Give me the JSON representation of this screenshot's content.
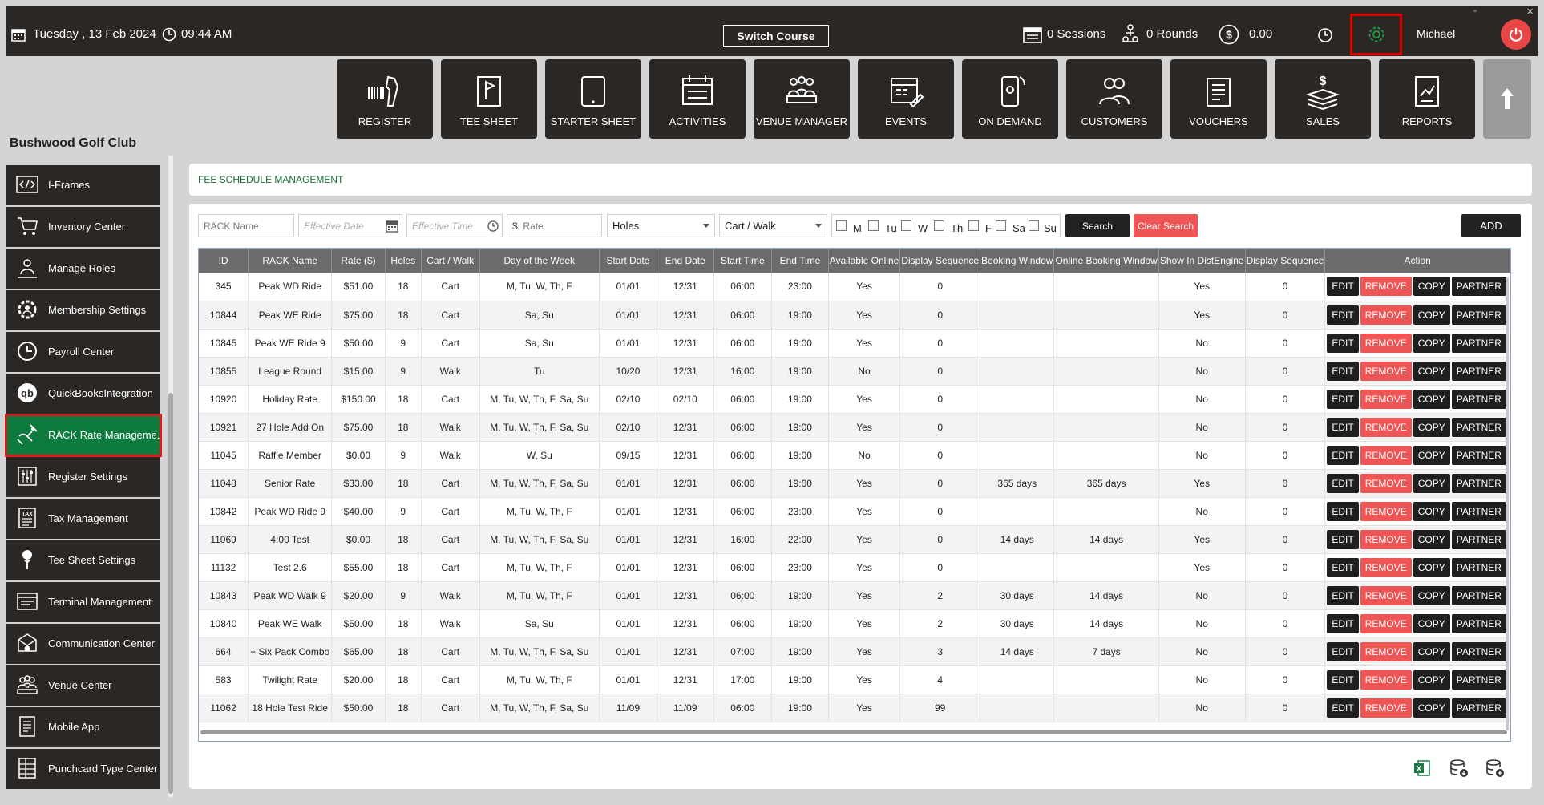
{
  "topbar": {
    "date": "Tuesday ,  13 Feb 2024",
    "time": "09:44 AM",
    "switch_course": "Switch Course",
    "sessions": "0 Sessions",
    "rounds": "0 Rounds",
    "balance": "0.00",
    "user": "Michael"
  },
  "nav": [
    "REGISTER",
    "TEE SHEET",
    "STARTER SHEET",
    "ACTIVITIES",
    "VENUE MANAGER",
    "EVENTS",
    "ON DEMAND",
    "CUSTOMERS",
    "VOUCHERS",
    "SALES",
    "REPORTS"
  ],
  "club_name": "Bushwood Golf Club",
  "sidebar": [
    "I-Frames",
    "Inventory Center",
    "Manage Roles",
    "Membership Settings",
    "Payroll Center",
    "QuickBooksIntegration",
    "RACK Rate Manageme...",
    "Register Settings",
    "Tax Management",
    "Tee Sheet Settings",
    "Terminal Management",
    "Communication Center",
    "Venue Center",
    "Mobile App",
    "Punchcard Type Center"
  ],
  "panel_title": "FEE SCHEDULE MANAGEMENT",
  "filters": {
    "rack_name": "RACK Name",
    "effective_date": "Effective Date",
    "effective_time": "Effective Time",
    "rate": "Rate",
    "rate_prefix": "$",
    "holes": "Holes",
    "cart_walk": "Cart / Walk",
    "days": [
      "M",
      "Tu",
      "W",
      "Th",
      "F",
      "Sa",
      "Su"
    ],
    "search": "Search",
    "clear": "Clear Search",
    "add": "ADD"
  },
  "columns": [
    "ID",
    "RACK Name",
    "Rate ($)",
    "Holes",
    "Cart / Walk",
    "Day of the Week",
    "Start Date",
    "End Date",
    "Start Time",
    "End Time",
    "Available Online",
    "Display Sequence",
    "Booking Window",
    "Online Booking Window",
    "Show In DistEngine",
    "Display Sequence",
    "Action"
  ],
  "actions": {
    "edit": "EDIT",
    "remove": "REMOVE",
    "copy": "COPY",
    "partner": "PARTNER"
  },
  "rows": [
    [
      "345",
      "Peak WD Ride",
      "$51.00",
      "18",
      "Cart",
      "M, Tu, W, Th, F",
      "01/01",
      "12/31",
      "06:00",
      "23:00",
      "Yes",
      "0",
      "",
      "",
      "Yes",
      "0"
    ],
    [
      "10844",
      "Peak WE Ride",
      "$75.00",
      "18",
      "Cart",
      "Sa, Su",
      "01/01",
      "12/31",
      "06:00",
      "19:00",
      "Yes",
      "0",
      "",
      "",
      "Yes",
      "0"
    ],
    [
      "10845",
      "Peak WE Ride 9",
      "$50.00",
      "9",
      "Cart",
      "Sa, Su",
      "01/01",
      "12/31",
      "06:00",
      "19:00",
      "Yes",
      "0",
      "",
      "",
      "No",
      "0"
    ],
    [
      "10855",
      "League Round",
      "$15.00",
      "9",
      "Walk",
      "Tu",
      "10/20",
      "12/31",
      "16:00",
      "19:00",
      "No",
      "0",
      "",
      "",
      "No",
      "0"
    ],
    [
      "10920",
      "Holiday Rate",
      "$150.00",
      "18",
      "Cart",
      "M, Tu, W, Th, F, Sa, Su",
      "02/10",
      "02/10",
      "06:00",
      "19:00",
      "Yes",
      "0",
      "",
      "",
      "No",
      "0"
    ],
    [
      "10921",
      "27 Hole Add On",
      "$75.00",
      "18",
      "Walk",
      "M, Tu, W, Th, F, Sa, Su",
      "02/10",
      "12/31",
      "06:00",
      "19:00",
      "Yes",
      "0",
      "",
      "",
      "No",
      "0"
    ],
    [
      "11045",
      "Raffle Member",
      "$0.00",
      "9",
      "Walk",
      "W, Su",
      "09/15",
      "12/31",
      "06:00",
      "19:00",
      "No",
      "0",
      "",
      "",
      "No",
      "0"
    ],
    [
      "11048",
      "Senior Rate",
      "$33.00",
      "18",
      "Cart",
      "M, Tu, W, Th, F, Sa, Su",
      "01/01",
      "12/31",
      "06:00",
      "19:00",
      "Yes",
      "0",
      "365 days",
      "365 days",
      "Yes",
      "0"
    ],
    [
      "10842",
      "Peak WD Ride 9",
      "$40.00",
      "9",
      "Cart",
      "M, Tu, W, Th, F",
      "01/01",
      "12/31",
      "06:00",
      "23:00",
      "Yes",
      "0",
      "",
      "",
      "No",
      "0"
    ],
    [
      "11069",
      "4:00 Test",
      "$0.00",
      "18",
      "Cart",
      "M, Tu, W, Th, F, Sa, Su",
      "01/01",
      "12/31",
      "16:00",
      "22:00",
      "Yes",
      "0",
      "14 days",
      "14 days",
      "Yes",
      "0"
    ],
    [
      "11132",
      "Test 2.6",
      "$55.00",
      "18",
      "Cart",
      "M, Tu, W, Th, F",
      "01/01",
      "12/31",
      "06:00",
      "23:00",
      "Yes",
      "0",
      "",
      "",
      "Yes",
      "0"
    ],
    [
      "10843",
      "Peak WD Walk 9",
      "$20.00",
      "9",
      "Walk",
      "M, Tu, W, Th, F",
      "01/01",
      "12/31",
      "06:00",
      "19:00",
      "Yes",
      "2",
      "30 days",
      "14 days",
      "No",
      "0"
    ],
    [
      "10840",
      "Peak WE Walk",
      "$50.00",
      "18",
      "Walk",
      "Sa, Su",
      "01/01",
      "12/31",
      "06:00",
      "19:00",
      "Yes",
      "2",
      "30 days",
      "14 days",
      "No",
      "0"
    ],
    [
      "664",
      "+ Six Pack Combo",
      "$65.00",
      "18",
      "Cart",
      "M, Tu, W, Th, F, Sa, Su",
      "01/01",
      "12/31",
      "07:00",
      "19:00",
      "Yes",
      "3",
      "14 days",
      "7 days",
      "No",
      "0"
    ],
    [
      "583",
      "Twilight Rate",
      "$20.00",
      "18",
      "Cart",
      "M, Tu, W, Th, F",
      "01/01",
      "12/31",
      "17:00",
      "19:00",
      "Yes",
      "4",
      "",
      "",
      "No",
      "0"
    ],
    [
      "11062",
      "18 Hole Test Ride",
      "$50.00",
      "18",
      "Cart",
      "M, Tu, W, Th, F, Sa, Su",
      "11/09",
      "11/09",
      "06:00",
      "19:00",
      "Yes",
      "99",
      "",
      "",
      "No",
      "0"
    ]
  ]
}
